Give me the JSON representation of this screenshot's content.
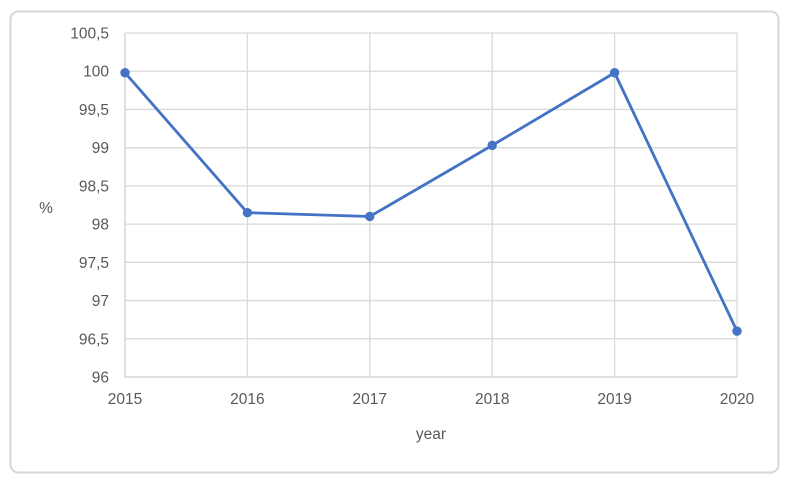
{
  "figure": {
    "background": "#ffffff",
    "frame_color": "#d6d6d6"
  },
  "chart_data": {
    "type": "line",
    "title": "",
    "xlabel": "year",
    "ylabel": "%",
    "categories": [
      "2015",
      "2016",
      "2017",
      "2018",
      "2019",
      "2020"
    ],
    "series": [
      {
        "name": "",
        "values": [
          99.98,
          98.15,
          98.1,
          99.03,
          99.98,
          96.6
        ],
        "color": "#4472C4"
      }
    ],
    "ylim": [
      96,
      100.5
    ],
    "ytick_step": 0.5,
    "decimal_separator": ",",
    "grid": true,
    "gridline_color": "#d9d9d9",
    "axis_line_color": "#cfcfcf",
    "tick_label_color": "#595959",
    "axis_title_color": "#595959",
    "legend": "none",
    "marker": "circle"
  }
}
